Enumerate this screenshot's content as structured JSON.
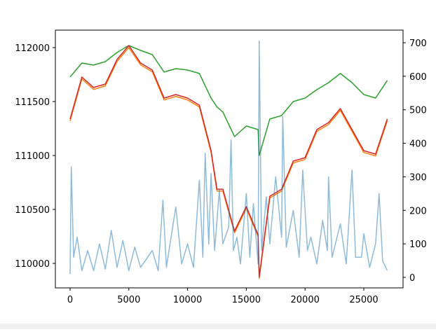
{
  "chart_data": {
    "type": "line",
    "x": [
      0,
      1000,
      2000,
      3000,
      4000,
      5000,
      6000,
      7000,
      8000,
      9000,
      10000,
      11000,
      12000,
      12500,
      13000,
      14000,
      15000,
      16000,
      16100,
      17000,
      18000,
      19000,
      20000,
      21000,
      22000,
      23000,
      24000,
      25000,
      26000,
      27000
    ],
    "series": [
      {
        "color": "#2ca02c",
        "values": [
          111727,
          111857,
          111838,
          111870,
          111955,
          112019,
          111974,
          111935,
          111773,
          111805,
          111792,
          111760,
          111532,
          111450,
          111403,
          111175,
          111273,
          111240,
          111000,
          111338,
          111370,
          111500,
          111532,
          111610,
          111675,
          111760,
          111675,
          111565,
          111532,
          111695
        ]
      },
      {
        "color": "#ff7f0e",
        "values": [
          111320,
          111710,
          111612,
          111645,
          111872,
          112000,
          111840,
          111775,
          111515,
          111548,
          111515,
          111450,
          111028,
          110670,
          110670,
          110283,
          110509,
          110249,
          109860,
          110606,
          110671,
          110931,
          110963,
          111223,
          111288,
          111418,
          111223,
          111028,
          110996,
          111321
        ]
      },
      {
        "color": "#d62728",
        "values": [
          111338,
          111727,
          111630,
          111662,
          111890,
          112019,
          111857,
          111792,
          111532,
          111565,
          111532,
          111467,
          111045,
          110688,
          110688,
          110300,
          110526,
          110266,
          109877,
          110623,
          110688,
          110948,
          110980,
          111240,
          111305,
          111435,
          111240,
          111045,
          111013,
          111338
        ]
      },
      {
        "color": "#1f77b4",
        "axis": "y2",
        "x": [
          0,
          100,
          300,
          600,
          1000,
          1500,
          2000,
          2500,
          3000,
          3500,
          4000,
          4500,
          5000,
          5500,
          6000,
          7000,
          7500,
          7900,
          8200,
          9000,
          9500,
          10000,
          10500,
          11000,
          11300,
          11500,
          11800,
          12000,
          12300,
          12700,
          13000,
          13500,
          13700,
          13900,
          14200,
          14500,
          15000,
          15300,
          15600,
          16000,
          16100,
          16300,
          16700,
          17000,
          17500,
          18000,
          18100,
          18400,
          19000,
          19500,
          19800,
          20200,
          20500,
          21000,
          21500,
          21900,
          22000,
          22300,
          23000,
          23500,
          24000,
          24300,
          24800,
          25000,
          25500,
          26000,
          26300,
          26600,
          27000
        ],
        "values": [
          10,
          330,
          60,
          120,
          20,
          80,
          20,
          100,
          25,
          140,
          30,
          110,
          20,
          90,
          30,
          80,
          20,
          230,
          30,
          210,
          40,
          100,
          30,
          290,
          60,
          370,
          100,
          310,
          80,
          260,
          100,
          150,
          410,
          80,
          120,
          40,
          250,
          60,
          220,
          40,
          705,
          80,
          240,
          100,
          300,
          120,
          480,
          90,
          200,
          60,
          320,
          80,
          120,
          40,
          170,
          80,
          300,
          60,
          160,
          40,
          320,
          60,
          60,
          130,
          30,
          100,
          250,
          50,
          20
        ]
      }
    ],
    "xlim": [
      -1253,
      28341
    ],
    "xticks": [
      0,
      5000,
      10000,
      15000,
      20000,
      25000
    ],
    "ylim": [
      109773,
      112162
    ],
    "yticks": [
      110000,
      110500,
      111000,
      111500,
      112000
    ],
    "y2lim": [
      -31.3,
      737.6
    ],
    "y2ticks": [
      0,
      100,
      200,
      300,
      400,
      500,
      600,
      700
    ]
  }
}
